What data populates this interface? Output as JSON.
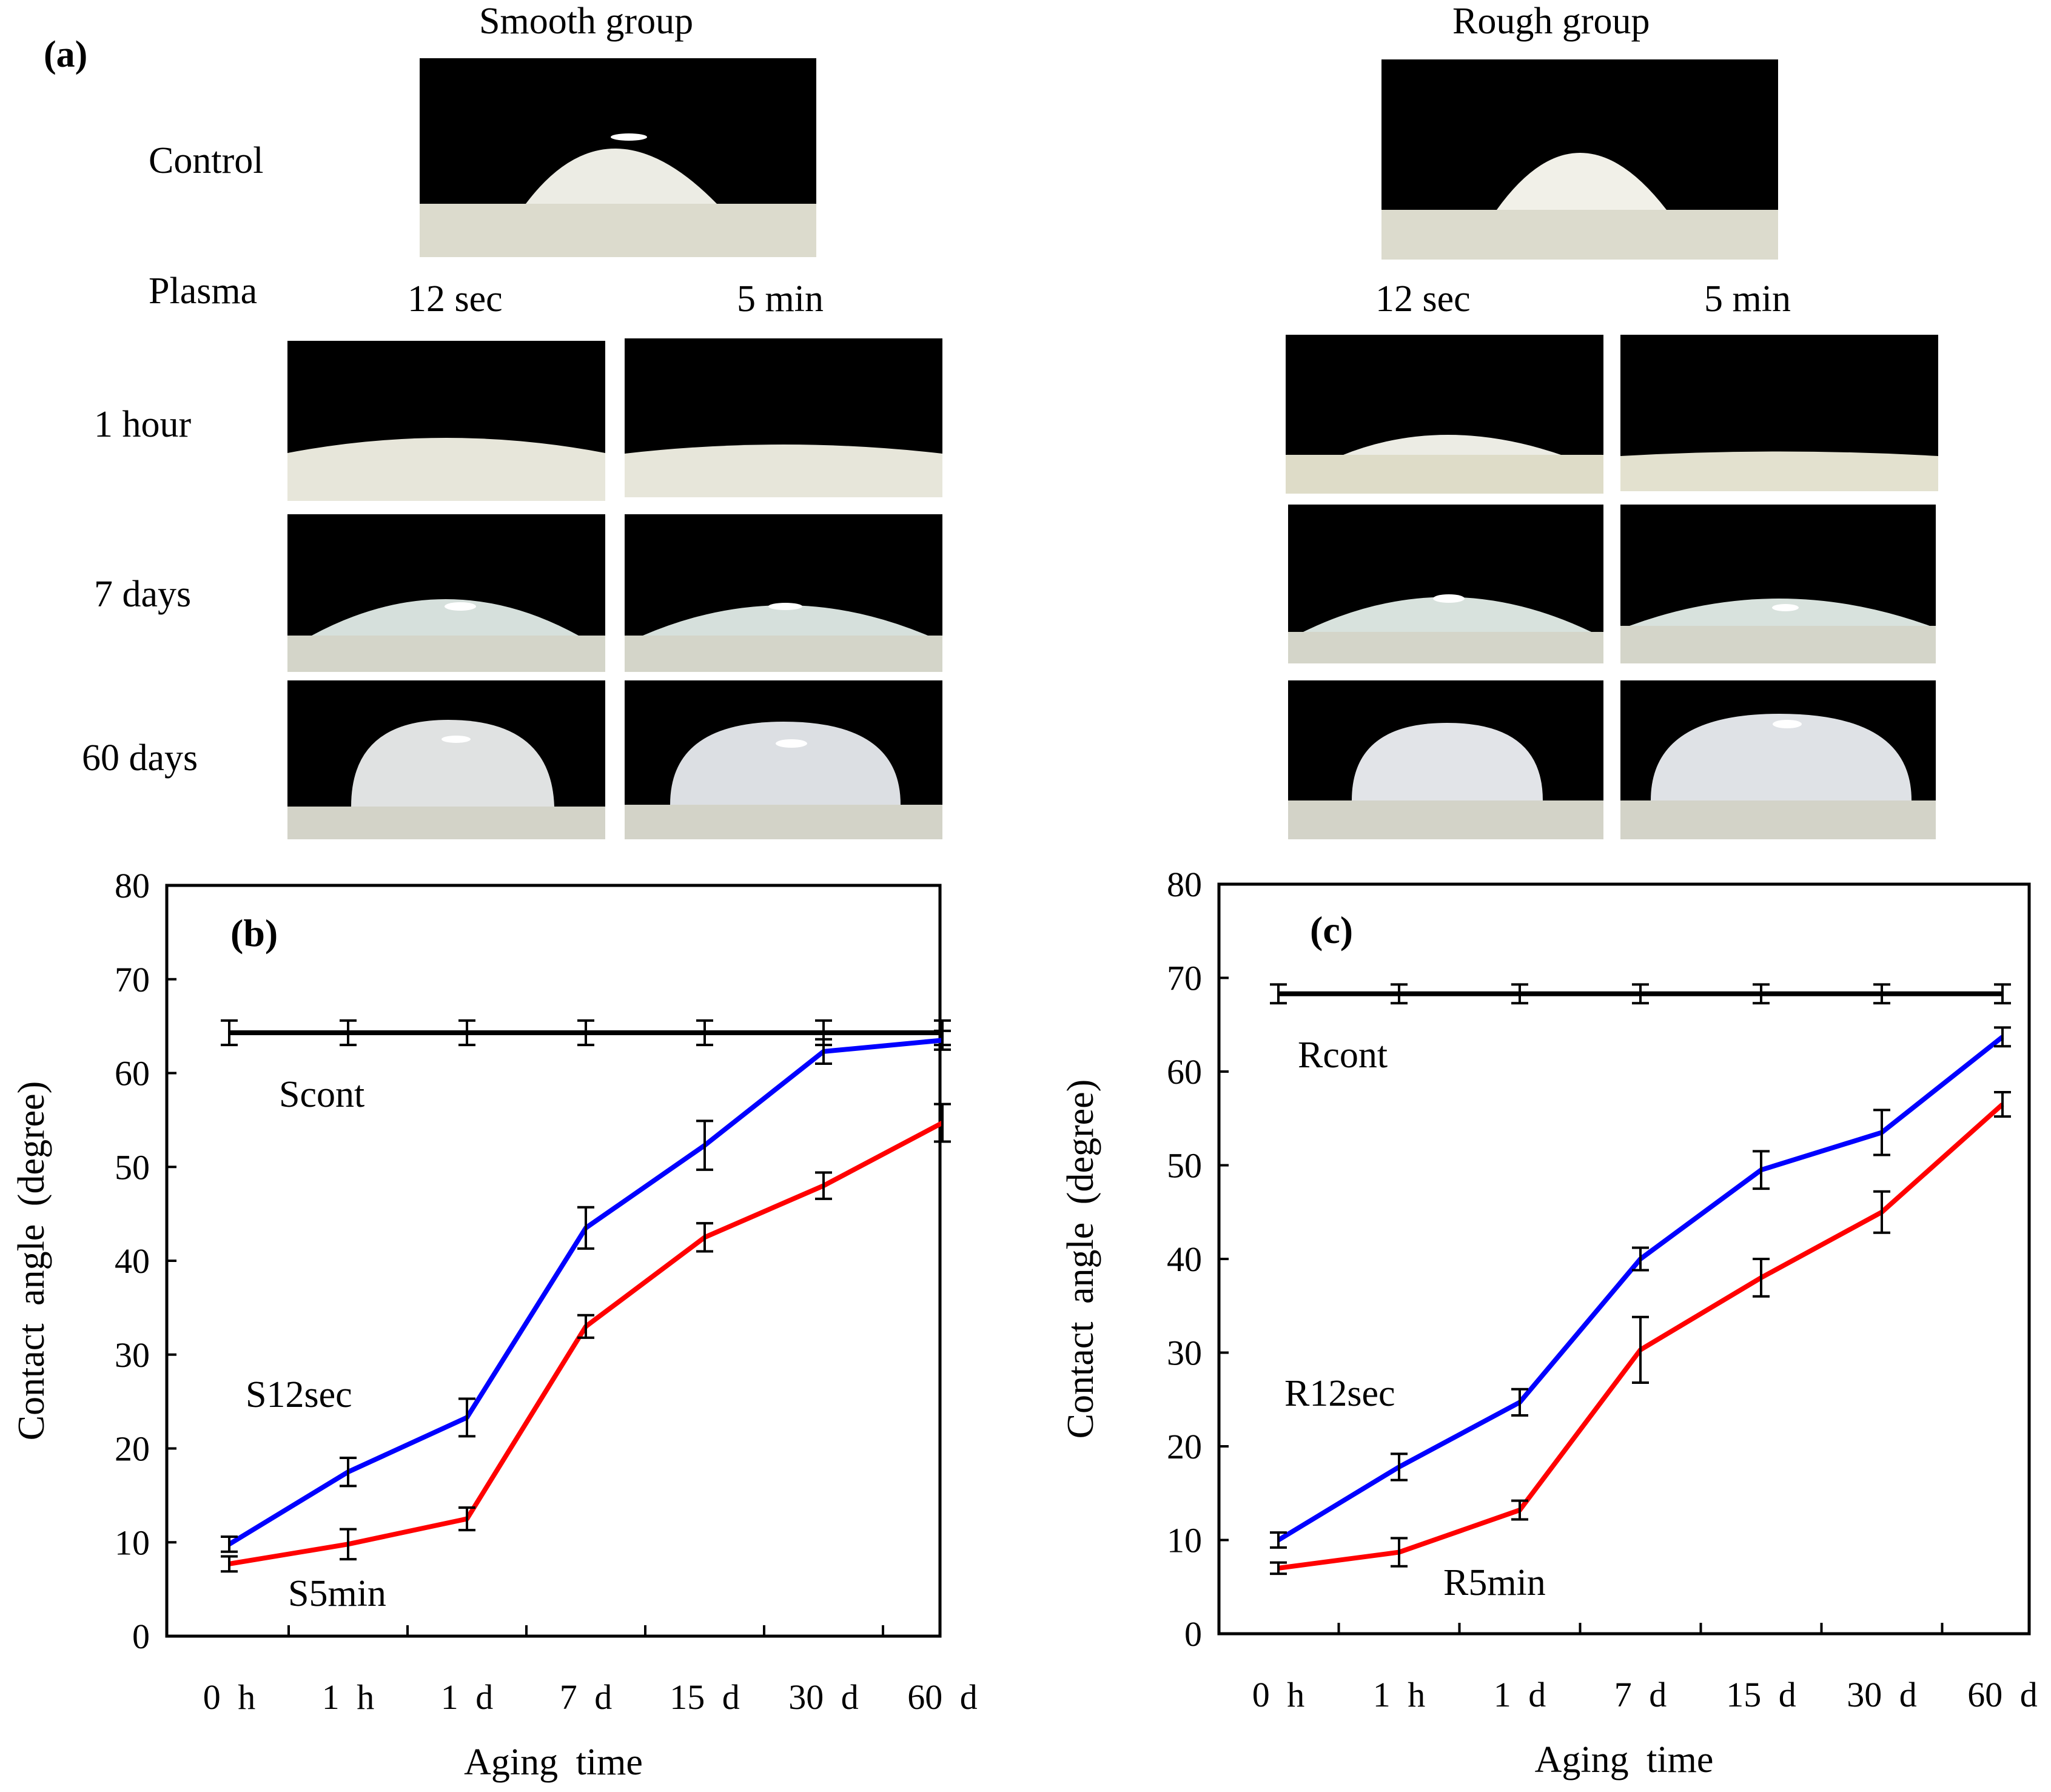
{
  "panel_a": {
    "label": "(a)",
    "smooth_title": "Smooth group",
    "rough_title": "Rough group",
    "control_label": "Control",
    "plasma_label": "Plasma",
    "col_12sec": "12 sec",
    "col_5min": "5 min",
    "rows": [
      "1 hour",
      "7 days",
      "60 days"
    ]
  },
  "chart_data": [
    {
      "type": "line",
      "panel_label": "(b)",
      "title": "",
      "xlabel": "Aging time",
      "ylabel": "Contact angle (degree)",
      "categories": [
        "0 h",
        "1 h",
        "1 d",
        "7 d",
        "15 d",
        "30 d",
        "60 d"
      ],
      "ylim": [
        0,
        80
      ],
      "yticks": [
        0,
        10,
        20,
        30,
        40,
        50,
        60,
        70,
        80
      ],
      "series": [
        {
          "name": "Scont",
          "color": "#000000",
          "values": [
            64.3,
            64.3,
            64.3,
            64.3,
            64.3,
            64.3,
            64.3
          ],
          "errors": [
            1.3,
            1.3,
            1.3,
            1.3,
            1.3,
            1.3,
            1.3
          ]
        },
        {
          "name": "S12sec",
          "color": "#0000ff",
          "values": [
            9.8,
            17.5,
            23.3,
            43.5,
            52.3,
            62.3,
            63.5
          ],
          "errors": [
            0.8,
            1.5,
            2.0,
            2.2,
            2.6,
            1.3,
            1.0
          ]
        },
        {
          "name": "S5min",
          "color": "#ff0000",
          "values": [
            7.7,
            9.8,
            12.5,
            33.0,
            42.5,
            48.0,
            54.7
          ],
          "errors": [
            0.8,
            1.6,
            1.2,
            1.2,
            1.5,
            1.4,
            2.0
          ]
        }
      ]
    },
    {
      "type": "line",
      "panel_label": "(c)",
      "title": "",
      "xlabel": "Aging time",
      "ylabel": "Contact angle (degree)",
      "categories": [
        "0 h",
        "1 h",
        "1 d",
        "7 d",
        "15 d",
        "30 d",
        "60 d"
      ],
      "ylim": [
        0,
        80
      ],
      "yticks": [
        0,
        10,
        20,
        30,
        40,
        50,
        60,
        70,
        80
      ],
      "series": [
        {
          "name": "Rcont",
          "color": "#000000",
          "values": [
            68.3,
            68.3,
            68.3,
            68.3,
            68.3,
            68.3,
            68.3
          ],
          "errors": [
            1.0,
            1.0,
            1.0,
            1.0,
            1.0,
            1.0,
            1.0
          ]
        },
        {
          "name": "R12sec",
          "color": "#0000ff",
          "values": [
            10.0,
            17.8,
            24.7,
            40.0,
            49.5,
            53.5,
            63.7
          ],
          "errors": [
            0.8,
            1.4,
            1.4,
            1.2,
            2.0,
            2.4,
            1.0
          ]
        },
        {
          "name": "R5min",
          "color": "#ff0000",
          "values": [
            7.0,
            8.7,
            13.2,
            30.3,
            38.0,
            45.0,
            56.5
          ],
          "errors": [
            0.6,
            1.5,
            1.0,
            3.5,
            2.0,
            2.2,
            1.3
          ]
        }
      ]
    }
  ]
}
